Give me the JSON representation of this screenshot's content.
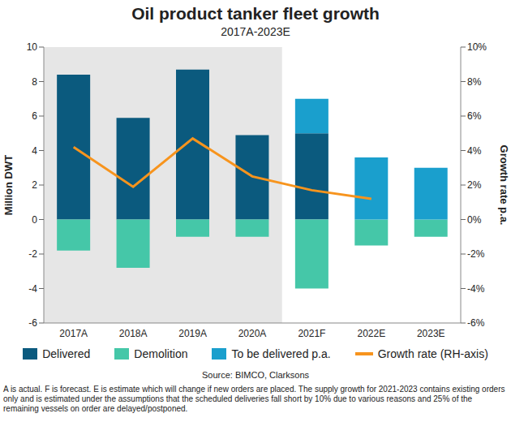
{
  "chart_data": {
    "type": "bar",
    "title": "Oil product tanker fleet growth",
    "subtitle": "2017A-2023E",
    "categories": [
      "2017A",
      "2018A",
      "2019A",
      "2020A",
      "2021F",
      "2022E",
      "2023E"
    ],
    "series": [
      {
        "name": "Delivered",
        "type": "bar",
        "color": "#0b5a7e",
        "values": [
          8.4,
          5.9,
          8.7,
          4.9,
          5.0,
          null,
          null
        ]
      },
      {
        "name": "Demolition",
        "type": "bar",
        "color": "#45c7a8",
        "values": [
          -1.8,
          -2.8,
          -1.0,
          -1.0,
          -4.0,
          -1.5,
          -1.0
        ]
      },
      {
        "name": "To be delivered p.a.",
        "type": "bar",
        "color": "#1a9fcd",
        "values": [
          null,
          null,
          null,
          null,
          2.0,
          3.6,
          3.0
        ]
      },
      {
        "name": "Growth rate (RH-axis)",
        "type": "line",
        "axis": "y2",
        "color": "#f7941d",
        "values": [
          4.2,
          1.9,
          4.7,
          2.5,
          1.7,
          1.2,
          null
        ]
      }
    ],
    "y_label": "Million DWT",
    "y2_label": "Growth rate p.a.",
    "ylim": [
      -6,
      10
    ],
    "yticks": [
      -6,
      -4,
      -2,
      0,
      2,
      4,
      6,
      8,
      10
    ],
    "y2lim": [
      -6,
      10
    ],
    "y2ticks": [
      {
        "value": -6,
        "label": "-6%"
      },
      {
        "value": -4,
        "label": "-4%"
      },
      {
        "value": -2,
        "label": "-2%"
      },
      {
        "value": 0,
        "label": "0%"
      },
      {
        "value": 2,
        "label": "2%"
      },
      {
        "value": 4,
        "label": "4%"
      },
      {
        "value": 6,
        "label": "6%"
      },
      {
        "value": 8,
        "label": "8%"
      },
      {
        "value": 10,
        "label": "10%"
      }
    ],
    "stacked": true,
    "grid": false,
    "source": "Source: BIMCO, Clarksons",
    "footnote": "A is actual. F is forecast. E is estimate which will change if new orders are placed. The supply growth for 2021-2023 contains existing orders only and is estimated under the assumptions that the scheduled deliveries fall short by 10% due to various reasons and 25% of the remaining vessels on order are delayed/postponed."
  }
}
